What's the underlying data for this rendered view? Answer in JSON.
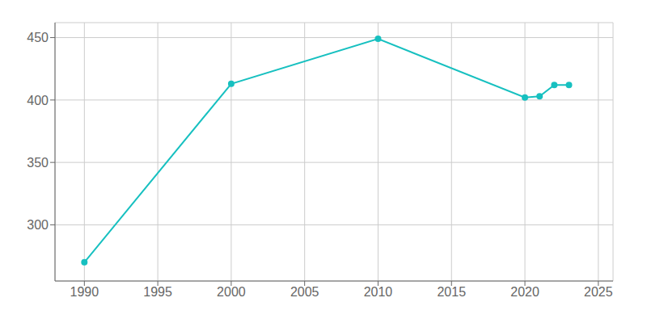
{
  "chart_data": {
    "type": "line",
    "x": [
      1990,
      2000,
      2010,
      2020,
      2021,
      2022,
      2023
    ],
    "values": [
      270,
      413,
      449,
      402,
      403,
      412,
      412
    ],
    "color": "#17c0c0",
    "marker": "circle",
    "xlim": [
      1988,
      2026
    ],
    "ylim": [
      255,
      462
    ],
    "xticks": [
      1990,
      1995,
      2000,
      2005,
      2010,
      2015,
      2020,
      2025
    ],
    "yticks": [
      300,
      350,
      400,
      450
    ],
    "grid": true
  }
}
